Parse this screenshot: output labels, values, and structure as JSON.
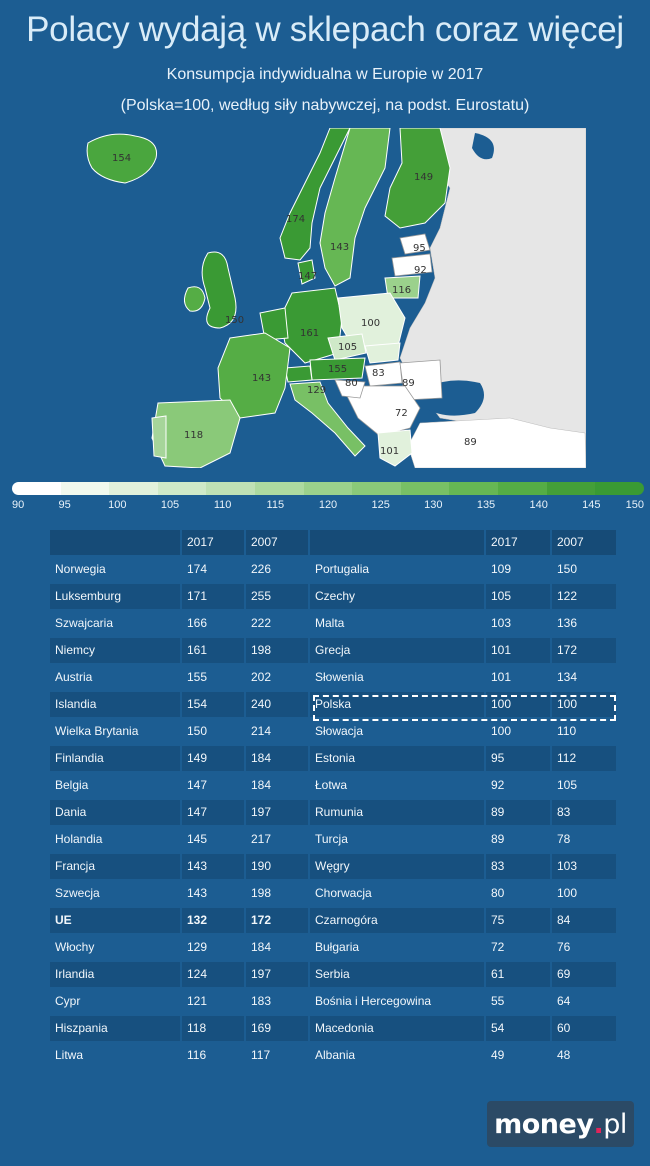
{
  "title": "Polacy wydają w sklepach coraz więcej",
  "subtitle_1": "Konsumpcja indywidualna w Europie w 2017",
  "subtitle_2": "(Polska=100, według siły nabywczej, na podst. Eurostatu)",
  "map_labels": [
    "154",
    "174",
    "143",
    "149",
    "95",
    "92",
    "147",
    "116",
    "150",
    "161",
    "100",
    "105",
    "155",
    "83",
    "89",
    "143",
    "129",
    "80",
    "72",
    "118",
    "101",
    "89"
  ],
  "scale": {
    "ticks": [
      "90",
      "95",
      "100",
      "105",
      "110",
      "115",
      "120",
      "125",
      "130",
      "135",
      "140",
      "145",
      "150"
    ],
    "colors": [
      "#ffffff",
      "#f1f9ee",
      "#e1f1dc",
      "#cfe9c8",
      "#bfe1b5",
      "#addaa0",
      "#9bd18c",
      "#8ac979",
      "#78c065",
      "#66b754",
      "#55ad45",
      "#449f38",
      "#3a9a34"
    ]
  },
  "table": {
    "headers": [
      "",
      "2017",
      "2007",
      "",
      "2017",
      "2007"
    ],
    "rows": [
      [
        "Norwegia",
        "174",
        "226",
        "Portugalia",
        "109",
        "150"
      ],
      [
        "Luksemburg",
        "171",
        "255",
        "Czechy",
        "105",
        "122"
      ],
      [
        "Szwajcaria",
        "166",
        "222",
        "Malta",
        "103",
        "136"
      ],
      [
        "Niemcy",
        "161",
        "198",
        "Grecja",
        "101",
        "172"
      ],
      [
        "Austria",
        "155",
        "202",
        "Słowenia",
        "101",
        "134"
      ],
      [
        "Islandia",
        "154",
        "240",
        "Polska",
        "100",
        "100"
      ],
      [
        "Wielka Brytania",
        "150",
        "214",
        "Słowacja",
        "100",
        "110"
      ],
      [
        "Finlandia",
        "149",
        "184",
        "Estonia",
        "95",
        "112"
      ],
      [
        "Belgia",
        "147",
        "184",
        "Łotwa",
        "92",
        "105"
      ],
      [
        "Dania",
        "147",
        "197",
        "Rumunia",
        "89",
        "83"
      ],
      [
        "Holandia",
        "145",
        "217",
        "Turcja",
        "89",
        "78"
      ],
      [
        "Francja",
        "143",
        "190",
        "Węgry",
        "83",
        "103"
      ],
      [
        "Szwecja",
        "143",
        "198",
        "Chorwacja",
        "80",
        "100"
      ],
      [
        "UE",
        "132",
        "172",
        "Czarnogóra",
        "75",
        "84"
      ],
      [
        "Włochy",
        "129",
        "184",
        "Bułgaria",
        "72",
        "76"
      ],
      [
        "Irlandia",
        "124",
        "197",
        "Serbia",
        "61",
        "69"
      ],
      [
        "Cypr",
        "121",
        "183",
        "Bośnia i Hercegowina",
        "55",
        "64"
      ],
      [
        "Hiszpania",
        "118",
        "169",
        "Macedonia",
        "54",
        "60"
      ],
      [
        "Litwa",
        "116",
        "117",
        "Albania",
        "49",
        "48"
      ]
    ]
  },
  "logo": {
    "main": "money",
    "dot": ".",
    "suffix": "pl"
  }
}
